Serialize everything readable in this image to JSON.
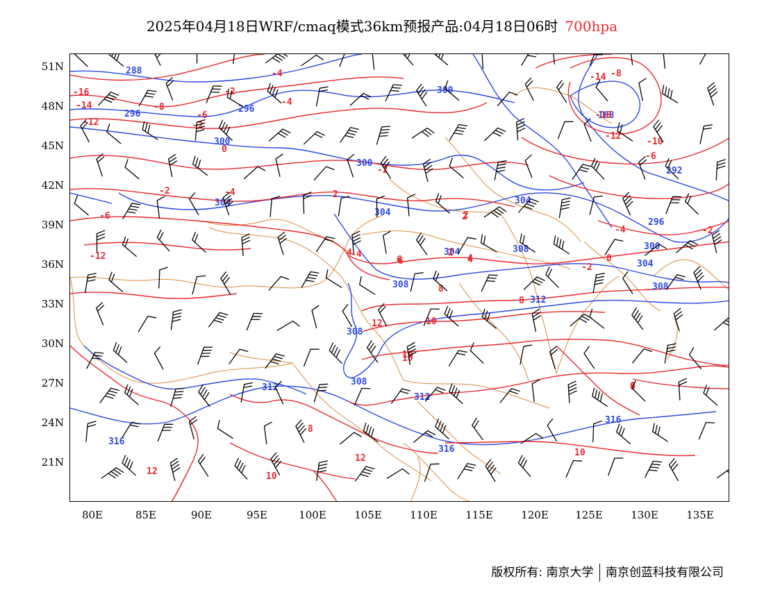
{
  "title": {
    "main": "2025年04月18日WRF/cmaq模式36km预报产品:04月18日06时",
    "level": "700hpa"
  },
  "axes": {
    "lat_labels": [
      "51N",
      "48N",
      "45N",
      "42N",
      "39N",
      "36N",
      "33N",
      "30N",
      "27N",
      "24N",
      "21N"
    ],
    "lon_labels": [
      "80E",
      "85E",
      "90E",
      "95E",
      "100E",
      "105E",
      "110E",
      "115E",
      "120E",
      "125E",
      "130E",
      "135E"
    ]
  },
  "copyright": {
    "prefix": "版权所有:",
    "org1": "南京大学",
    "org2": "南京创蓝科技有限公司"
  },
  "colors": {
    "geopotential": "#2c49e0",
    "temperature": "#e8282e",
    "boundaries": "#d98c3c",
    "wind_barbs": "#000000"
  },
  "contours": {
    "geopotential_labels": [
      "288",
      "296",
      "296",
      "300",
      "300",
      "300",
      "304",
      "304",
      "304",
      "308",
      "308",
      "312",
      "308",
      "308",
      "312",
      "312",
      "316",
      "316",
      "316",
      "292",
      "296",
      "300",
      "304",
      "308",
      "304",
      "288",
      "168"
    ],
    "temperature_labels": [
      "-16",
      "-14",
      "-12",
      "-8",
      "-6",
      "-4",
      "-2",
      "-4",
      "-2",
      "0",
      "-2",
      "-4",
      "-6",
      "-8",
      "-10",
      "-12",
      "-14",
      "-16",
      "2",
      "-2",
      "4",
      "6",
      "8",
      "10",
      "12",
      "10",
      "12",
      "10",
      "8",
      "6",
      "-12",
      "-4",
      "-6",
      "2",
      "4",
      "6",
      "8",
      "10",
      "12",
      "10",
      "-2",
      "0",
      "2",
      "4",
      "6",
      "8",
      "-6",
      "-2",
      "-4",
      "2"
    ]
  }
}
